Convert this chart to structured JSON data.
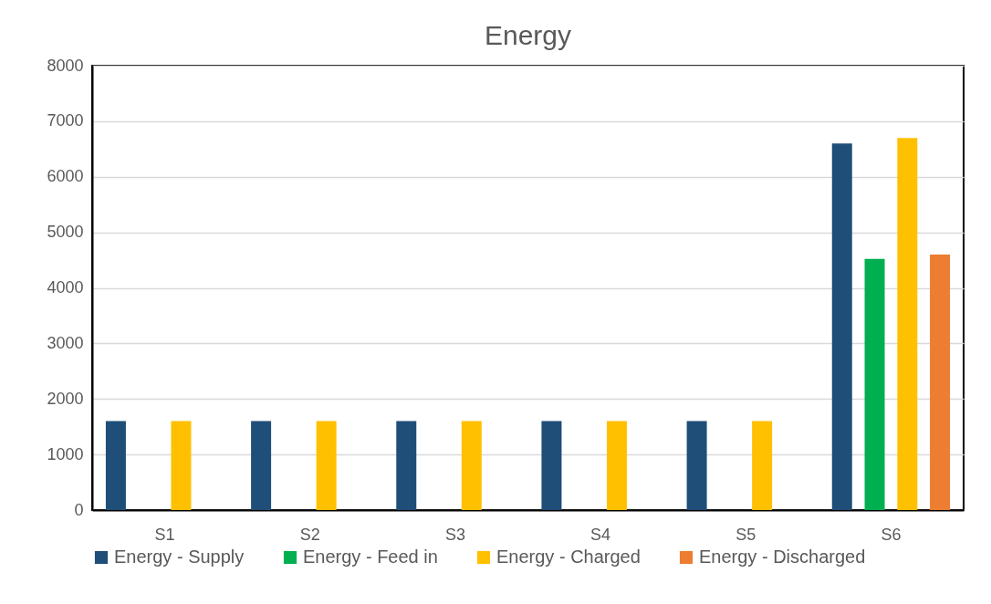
{
  "chart_data": {
    "type": "bar",
    "title": "Energy",
    "categories": [
      "S1",
      "S2",
      "S3",
      "S4",
      "S5",
      "S6"
    ],
    "series": [
      {
        "name": "Energy - Supply",
        "color": "#1f4e79",
        "values": [
          1600,
          1600,
          1600,
          1600,
          1600,
          6600
        ]
      },
      {
        "name": "Energy - Feed in",
        "color": "#00b050",
        "values": [
          null,
          null,
          null,
          null,
          null,
          4520
        ]
      },
      {
        "name": "Energy - Charged",
        "color": "#ffc000",
        "values": [
          1600,
          1600,
          1600,
          1600,
          1600,
          6700
        ]
      },
      {
        "name": "Energy - Discharged",
        "color": "#ed7d31",
        "values": [
          null,
          null,
          null,
          null,
          null,
          4600
        ]
      }
    ],
    "ylim": [
      0,
      8000
    ],
    "yticks": [
      0,
      1000,
      2000,
      3000,
      4000,
      5000,
      6000,
      7000,
      8000
    ],
    "grid": "y",
    "legend": "bottom"
  }
}
